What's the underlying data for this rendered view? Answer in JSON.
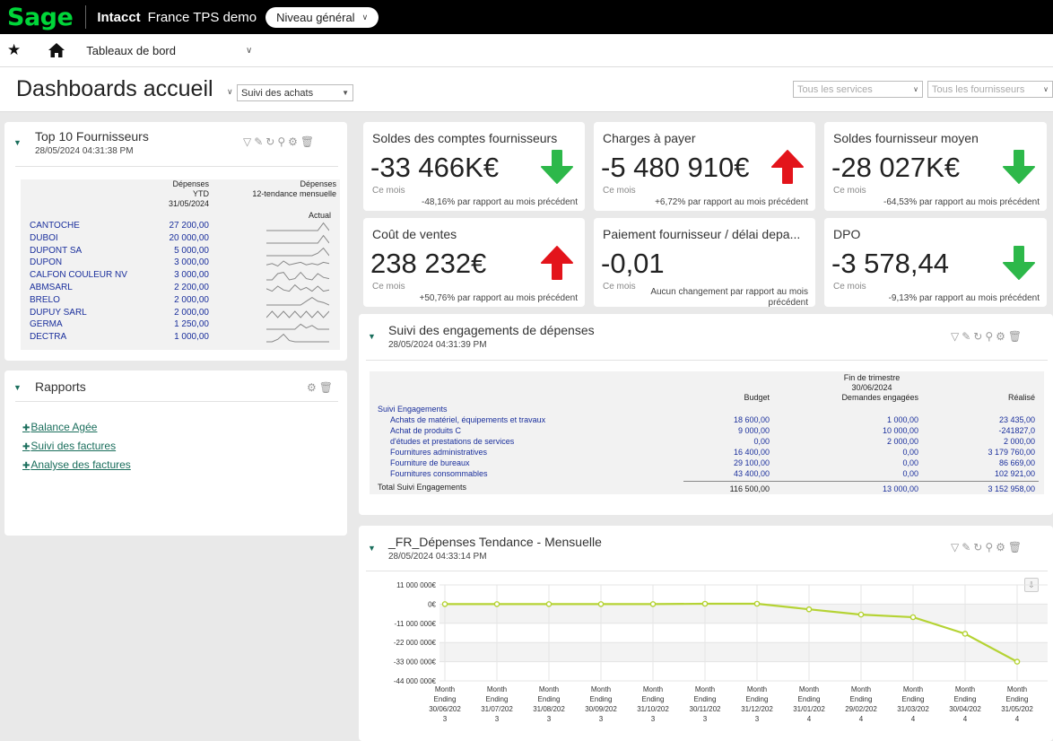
{
  "topbar": {
    "logo": "Sage",
    "product": "Intacct",
    "company": "France TPS demo",
    "level": "Niveau général"
  },
  "nav": {
    "dashboards": "Tableaux de bord"
  },
  "page": {
    "title": "Dashboards accueil",
    "view_select": "Suivi des achats",
    "filter_services": "Tous les services",
    "filter_suppliers": "Tous les fournisseurs"
  },
  "top10": {
    "title": "Top 10 Fournisseurs",
    "timestamp": "28/05/2024 04:31:38 PM",
    "col1": [
      "Dépenses",
      "YTD",
      "31/05/2024"
    ],
    "col2": [
      "Dépenses",
      "12-tendance mensuelle"
    ],
    "col2_sub": "Actual",
    "rows": [
      {
        "name": "CANTOCHE",
        "value": "27 200,00",
        "trend": [
          0,
          0,
          0,
          0,
          0,
          0,
          0,
          0,
          0,
          0,
          0.6,
          0
        ]
      },
      {
        "name": "DUBOI",
        "value": "20 000,00",
        "trend": [
          0,
          0,
          0,
          0,
          0,
          0,
          0,
          0,
          0,
          0,
          0.6,
          0
        ]
      },
      {
        "name": "DUPONT SA",
        "value": "5 000,00",
        "trend": [
          0,
          0,
          0,
          0,
          0,
          0,
          0,
          0,
          0,
          0.2,
          0.6,
          0
        ]
      },
      {
        "name": "DUPON",
        "value": "3 000,00",
        "trend": [
          0.2,
          0.3,
          0.1,
          0.5,
          0.2,
          0.3,
          0.4,
          0.2,
          0.3,
          0.2,
          0.4,
          0.3
        ]
      },
      {
        "name": "CALFON COULEUR NV",
        "value": "3 000,00",
        "trend": [
          0,
          0,
          0.5,
          0.6,
          0,
          0.1,
          0.6,
          0.1,
          0,
          0.5,
          0.2,
          0.1
        ]
      },
      {
        "name": "ABMSARL",
        "value": "2 200,00",
        "trend": [
          0.3,
          0.1,
          0.5,
          0.2,
          0.1,
          0.6,
          0.2,
          0.4,
          0.1,
          0.5,
          0.1,
          0.2
        ]
      },
      {
        "name": "BRELO",
        "value": "2 000,00",
        "trend": [
          0,
          0,
          0,
          0,
          0,
          0,
          0,
          0.3,
          0.6,
          0.3,
          0.2,
          0
        ]
      },
      {
        "name": "DUPUY SARL",
        "value": "2 000,00",
        "trend": [
          0,
          0.5,
          0,
          0.5,
          0,
          0.5,
          0,
          0.5,
          0,
          0.5,
          0,
          0.5
        ]
      },
      {
        "name": "GERMA",
        "value": "1 250,00",
        "trend": [
          0,
          0,
          0,
          0,
          0,
          0,
          0.4,
          0.1,
          0.3,
          0,
          0,
          0
        ]
      },
      {
        "name": "DECTRA",
        "value": "1 000,00",
        "trend": [
          0,
          0,
          0.2,
          0.6,
          0.1,
          0,
          0,
          0,
          0,
          0,
          0,
          0
        ]
      }
    ]
  },
  "rapports": {
    "title": "Rapports",
    "links": [
      "Balance Agée",
      "Suivi des factures",
      "Analyse des factures"
    ]
  },
  "kpis": [
    {
      "title": "Soldes des comptes fournisseurs",
      "value": "-33 466K€",
      "label": "Ce mois",
      "comparison": "-48,16% par rapport au mois précédent",
      "trend": "down",
      "color": "#2db84a"
    },
    {
      "title": "Charges à payer",
      "value": "-5 480 910€",
      "label": "Ce mois",
      "comparison": "+6,72% par rapport au mois précédent",
      "trend": "up",
      "color": "#e3141b"
    },
    {
      "title": "Soldes fournisseur moyen",
      "value": "-28 027K€",
      "label": "Ce mois",
      "comparison": "-64,53% par rapport au mois précédent",
      "trend": "down",
      "color": "#2db84a"
    },
    {
      "title": "Coût de ventes",
      "value": "238 232€",
      "label": "Ce mois",
      "comparison": "+50,76% par rapport au mois précédent",
      "trend": "up",
      "color": "#e3141b"
    },
    {
      "title": "Paiement fournisseur / délai depa...",
      "value": "-0,01",
      "label": "Ce mois",
      "comparison_l1": "Aucun changement par rapport au mois",
      "comparison_l2": "précédent",
      "trend": "none"
    },
    {
      "title": "DPO",
      "value": "-3 578,44",
      "label": "Ce mois",
      "comparison": "-9,13% par rapport au mois précédent",
      "trend": "down",
      "color": "#2db84a"
    }
  ],
  "engagements": {
    "title": "Suivi des engagements de dépenses",
    "timestamp": "28/05/2024 04:31:39 PM",
    "period_l1": "Fin de trimestre",
    "period_l2": "30/06/2024",
    "col_budget": "Budget",
    "col_demandes": "Demandes engagées",
    "col_realise": "Réalisé",
    "group": "Suivi Engagements",
    "rows": [
      {
        "label": "Achats de matériel, équipements et travaux",
        "budget": "18 600,00",
        "demandes": "1 000,00",
        "realise": "23 435,00"
      },
      {
        "label": "Achat de produits C",
        "budget": "9 000,00",
        "demandes": "10 000,00",
        "realise": "-241827,0"
      },
      {
        "label": "d'études et prestations de services",
        "budget": "0,00",
        "demandes": "2 000,00",
        "realise": "2 000,00"
      },
      {
        "label": "Fournitures administratives",
        "budget": "16 400,00",
        "demandes": "0,00",
        "realise": "3 179 760,00"
      },
      {
        "label": "Fourniture de bureaux",
        "budget": "29 100,00",
        "demandes": "0,00",
        "realise": "86 669,00"
      },
      {
        "label": "Fournitures consommables",
        "budget": "43 400,00",
        "demandes": "0,00",
        "realise": "102 921,00"
      }
    ],
    "total_label": "Total Suivi Engagements",
    "total_budget": "116 500,00",
    "total_demandes": "13 000,00",
    "total_realise": "3 152 958,00"
  },
  "trend_chart": {
    "title": "_FR_Dépenses Tendance - Mensuelle",
    "timestamp": "28/05/2024 04:33:14 PM"
  },
  "chart_data": {
    "type": "line",
    "title": "_FR_Dépenses Tendance - Mensuelle",
    "x": [
      "Month Ending 30/06/2023",
      "Month Ending 31/07/2023",
      "Month Ending 31/08/2023",
      "Month Ending 30/09/2023",
      "Month Ending 31/10/2023",
      "Month Ending 30/11/2023",
      "Month Ending 31/12/2023",
      "Month Ending 31/01/2024",
      "Month Ending 29/02/2024",
      "Month Ending 31/03/2024",
      "Month Ending 30/04/2024",
      "Month Ending 31/05/2024"
    ],
    "x_lines": [
      [
        "Month",
        "Ending",
        "30/06/202",
        "3"
      ],
      [
        "Month",
        "Ending",
        "31/07/202",
        "3"
      ],
      [
        "Month",
        "Ending",
        "31/08/202",
        "3"
      ],
      [
        "Month",
        "Ending",
        "30/09/202",
        "3"
      ],
      [
        "Month",
        "Ending",
        "31/10/202",
        "3"
      ],
      [
        "Month",
        "Ending",
        "30/11/202",
        "3"
      ],
      [
        "Month",
        "Ending",
        "31/12/202",
        "3"
      ],
      [
        "Month",
        "Ending",
        "31/01/202",
        "4"
      ],
      [
        "Month",
        "Ending",
        "29/02/202",
        "4"
      ],
      [
        "Month",
        "Ending",
        "31/03/202",
        "4"
      ],
      [
        "Month",
        "Ending",
        "30/04/202",
        "4"
      ],
      [
        "Month",
        "Ending",
        "31/05/202",
        "4"
      ]
    ],
    "series": [
      {
        "values": [
          0,
          0,
          0,
          0,
          0,
          200000,
          200000,
          -3000000,
          -6000000,
          -7500000,
          -17000000,
          -33000000
        ]
      }
    ],
    "y_ticks": [
      11000000,
      0,
      -11000000,
      -22000000,
      -33000000,
      -44000000
    ],
    "y_tick_labels": [
      "11 000 000€",
      "0€",
      "-11 000 000€",
      "-22 000 000€",
      "-33 000 000€",
      "-44 000 000€"
    ],
    "ylim": [
      -44000000,
      11000000
    ],
    "line_color": "#b5d334",
    "grid": true
  },
  "colors": {
    "accent": "#1a6e5c",
    "link": "#1a2f9c",
    "logo": "#00d639"
  }
}
